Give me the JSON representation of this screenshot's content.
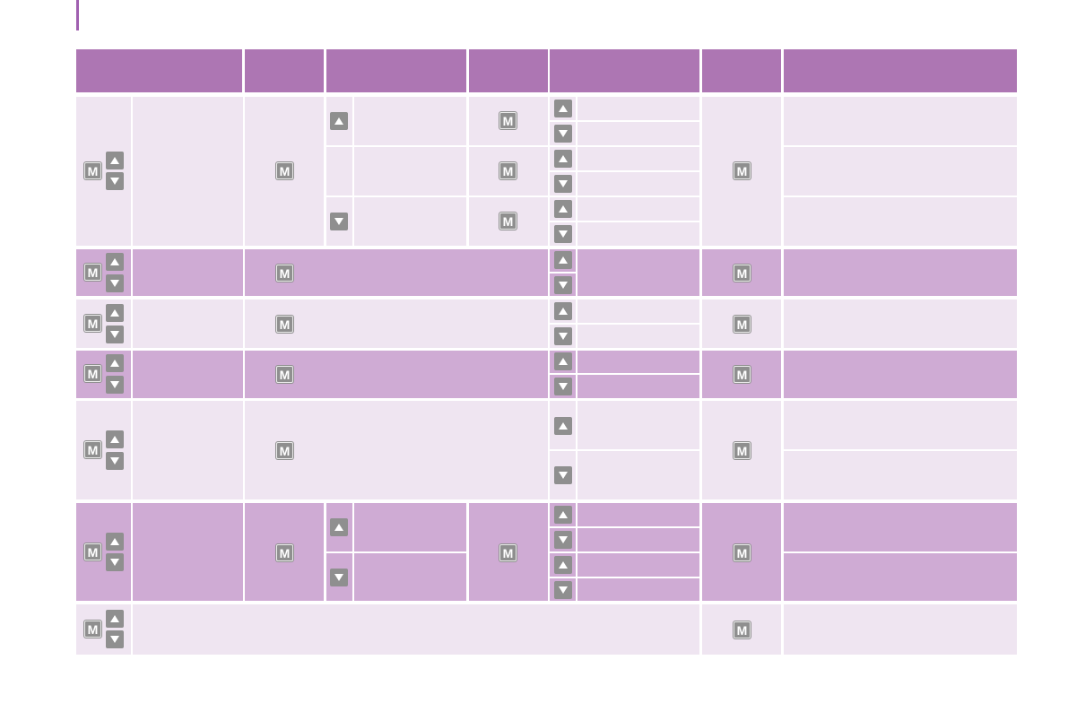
{
  "document": {
    "keys": {
      "menu": "M",
      "up": "up-arrow",
      "down": "down-arrow"
    },
    "colors": {
      "header": "#ad76b3",
      "row_light": "#efe5f1",
      "row_dark": "#cfabd4",
      "key": "#8f8f8f",
      "edge_bar": "#a060b0"
    }
  }
}
